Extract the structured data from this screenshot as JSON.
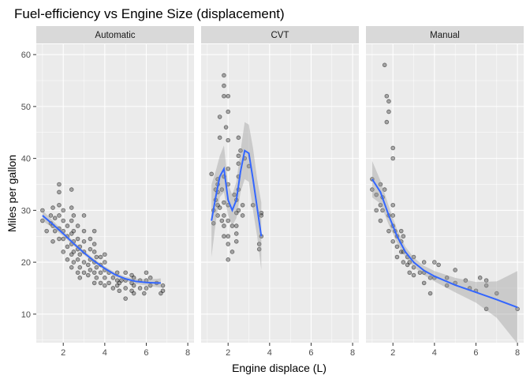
{
  "chart_data": {
    "type": "scatter",
    "title": "Fuel-efficiency vs Engine Size (displacement)",
    "xlabel": "Engine displace (L)",
    "ylabel": "Miles per gallon",
    "xlim": [
      0.7,
      8.3
    ],
    "ylim": [
      4.5,
      62
    ],
    "x_ticks": [
      2,
      4,
      6,
      8
    ],
    "y_ticks": [
      10,
      20,
      30,
      40,
      50,
      60
    ],
    "grid": true,
    "colors": {
      "panel_bg": "#ebebeb",
      "strip_bg": "#d9d9d9",
      "grid": "#ffffff",
      "point": "#000000",
      "smooth_line": "#3366ff",
      "ribbon": "#999999"
    },
    "facets": [
      {
        "label": "Automatic",
        "points": [
          [
            1.0,
            28.0
          ],
          [
            1.0,
            30.0
          ],
          [
            1.2,
            26.0
          ],
          [
            1.4,
            27.5
          ],
          [
            1.4,
            29.0
          ],
          [
            1.5,
            24.0
          ],
          [
            1.5,
            27.0
          ],
          [
            1.5,
            30.5
          ],
          [
            1.6,
            26.0
          ],
          [
            1.6,
            28.5
          ],
          [
            1.8,
            24.5
          ],
          [
            1.8,
            26.5
          ],
          [
            1.8,
            29.0
          ],
          [
            1.8,
            31.0
          ],
          [
            1.8,
            35.0
          ],
          [
            1.8,
            33.5
          ],
          [
            2.0,
            22.0
          ],
          [
            2.0,
            24.5
          ],
          [
            2.0,
            26.0
          ],
          [
            2.0,
            28.0
          ],
          [
            2.0,
            30.0
          ],
          [
            2.2,
            20.5
          ],
          [
            2.2,
            23.0
          ],
          [
            2.2,
            25.0
          ],
          [
            2.2,
            27.0
          ],
          [
            2.4,
            19.0
          ],
          [
            2.4,
            21.5
          ],
          [
            2.4,
            23.5
          ],
          [
            2.4,
            25.5
          ],
          [
            2.4,
            28.0
          ],
          [
            2.4,
            30.5
          ],
          [
            2.4,
            34.0
          ],
          [
            2.5,
            20.0
          ],
          [
            2.5,
            22.0
          ],
          [
            2.5,
            24.0
          ],
          [
            2.5,
            26.0
          ],
          [
            2.5,
            29.0
          ],
          [
            2.7,
            18.0
          ],
          [
            2.7,
            20.5
          ],
          [
            2.7,
            22.5
          ],
          [
            2.7,
            24.5
          ],
          [
            2.7,
            27.0
          ],
          [
            2.8,
            17.0
          ],
          [
            2.8,
            19.0
          ],
          [
            2.8,
            21.5
          ],
          [
            2.8,
            23.0
          ],
          [
            3.0,
            18.0
          ],
          [
            3.0,
            20.0
          ],
          [
            3.0,
            22.0
          ],
          [
            3.0,
            24.0
          ],
          [
            3.0,
            26.0
          ],
          [
            3.0,
            29.0
          ],
          [
            3.2,
            17.5
          ],
          [
            3.2,
            19.5
          ],
          [
            3.3,
            18.5
          ],
          [
            3.3,
            20.5
          ],
          [
            3.3,
            22.5
          ],
          [
            3.3,
            24.5
          ],
          [
            3.5,
            16.0
          ],
          [
            3.5,
            18.0
          ],
          [
            3.5,
            20.0
          ],
          [
            3.5,
            22.0
          ],
          [
            3.5,
            23.5
          ],
          [
            3.5,
            26.0
          ],
          [
            3.6,
            17.0
          ],
          [
            3.6,
            19.0
          ],
          [
            3.6,
            21.0
          ],
          [
            3.8,
            16.0
          ],
          [
            3.8,
            18.0
          ],
          [
            3.8,
            19.5
          ],
          [
            3.8,
            21.0
          ],
          [
            4.0,
            15.5
          ],
          [
            4.0,
            17.0
          ],
          [
            4.0,
            18.5
          ],
          [
            4.0,
            20.0
          ],
          [
            4.0,
            21.5
          ],
          [
            4.2,
            16.0
          ],
          [
            4.2,
            18.0
          ],
          [
            4.4,
            15.0
          ],
          [
            4.4,
            17.0
          ],
          [
            4.6,
            15.5
          ],
          [
            4.6,
            16.5
          ],
          [
            4.6,
            18.0
          ],
          [
            4.7,
            14.5
          ],
          [
            4.7,
            16.0
          ],
          [
            4.8,
            16.5
          ],
          [
            5.0,
            13.0
          ],
          [
            5.0,
            15.0
          ],
          [
            5.0,
            16.5
          ],
          [
            5.0,
            18.0
          ],
          [
            5.3,
            14.5
          ],
          [
            5.3,
            16.0
          ],
          [
            5.3,
            17.5
          ],
          [
            5.4,
            14.0
          ],
          [
            5.4,
            15.5
          ],
          [
            5.4,
            17.0
          ],
          [
            5.7,
            15.0
          ],
          [
            5.7,
            16.5
          ],
          [
            5.9,
            14.0
          ],
          [
            6.0,
            15.0
          ],
          [
            6.0,
            16.5
          ],
          [
            6.0,
            18.0
          ],
          [
            6.2,
            15.5
          ],
          [
            6.2,
            17.0
          ],
          [
            6.5,
            16.0
          ],
          [
            6.7,
            14.0
          ],
          [
            6.8,
            14.5
          ],
          [
            6.8,
            15.5
          ]
        ],
        "smooth": [
          [
            1.0,
            29.0
          ],
          [
            1.5,
            27.3
          ],
          [
            2.0,
            25.5
          ],
          [
            2.5,
            23.6
          ],
          [
            3.0,
            21.8
          ],
          [
            3.5,
            20.2
          ],
          [
            4.0,
            18.8
          ],
          [
            4.5,
            17.6
          ],
          [
            5.0,
            16.8
          ],
          [
            5.5,
            16.3
          ],
          [
            6.0,
            16.1
          ],
          [
            6.5,
            16.0
          ],
          [
            6.7,
            16.0
          ]
        ],
        "ribbon_half": [
          1.0,
          0.7,
          0.5,
          0.4,
          0.4,
          0.4,
          0.4,
          0.4,
          0.4,
          0.5,
          0.6,
          0.8,
          0.9
        ]
      },
      {
        "label": "CVT",
        "points": [
          [
            1.2,
            37.0
          ],
          [
            1.3,
            27.5
          ],
          [
            1.3,
            30.0
          ],
          [
            1.4,
            32.0
          ],
          [
            1.4,
            34.0
          ],
          [
            1.5,
            29.0
          ],
          [
            1.5,
            31.0
          ],
          [
            1.5,
            33.5
          ],
          [
            1.5,
            35.0
          ],
          [
            1.5,
            36.0
          ],
          [
            1.6,
            48.0
          ],
          [
            1.6,
            44.0
          ],
          [
            1.6,
            30.5
          ],
          [
            1.7,
            28.0
          ],
          [
            1.7,
            34.0
          ],
          [
            1.8,
            25.0
          ],
          [
            1.8,
            27.0
          ],
          [
            1.8,
            29.0
          ],
          [
            1.8,
            31.5
          ],
          [
            1.8,
            36.5
          ],
          [
            1.8,
            54.0
          ],
          [
            1.8,
            56.0
          ],
          [
            1.8,
            52.0
          ],
          [
            1.9,
            46.0
          ],
          [
            2.0,
            20.5
          ],
          [
            2.0,
            23.5
          ],
          [
            2.0,
            25.0
          ],
          [
            2.0,
            28.0
          ],
          [
            2.0,
            31.0
          ],
          [
            2.0,
            35.0
          ],
          [
            2.0,
            38.0
          ],
          [
            2.0,
            52.0
          ],
          [
            2.0,
            49.0
          ],
          [
            2.0,
            43.5
          ],
          [
            2.2,
            27.0
          ],
          [
            2.2,
            22.0
          ],
          [
            2.3,
            33.0
          ],
          [
            2.4,
            24.0
          ],
          [
            2.4,
            25.5
          ],
          [
            2.4,
            27.0
          ],
          [
            2.4,
            29.5
          ],
          [
            2.4,
            32.0
          ],
          [
            2.5,
            30.0
          ],
          [
            2.5,
            34.0
          ],
          [
            2.5,
            36.5
          ],
          [
            2.5,
            39.0
          ],
          [
            2.5,
            40.5
          ],
          [
            2.5,
            44.0
          ],
          [
            2.6,
            41.5
          ],
          [
            2.7,
            29.0
          ],
          [
            2.7,
            31.0
          ],
          [
            2.8,
            40.0
          ],
          [
            3.0,
            38.5
          ],
          [
            3.2,
            31.0
          ],
          [
            3.5,
            22.5
          ],
          [
            3.5,
            23.5
          ],
          [
            3.6,
            25.0
          ],
          [
            3.6,
            29.0
          ],
          [
            3.6,
            29.5
          ]
        ],
        "smooth": [
          [
            1.2,
            28.0
          ],
          [
            1.4,
            32.5
          ],
          [
            1.6,
            36.5
          ],
          [
            1.8,
            38.0
          ],
          [
            2.0,
            32.0
          ],
          [
            2.2,
            30.0
          ],
          [
            2.4,
            32.0
          ],
          [
            2.6,
            37.5
          ],
          [
            2.8,
            41.5
          ],
          [
            3.0,
            41.0
          ],
          [
            3.2,
            36.0
          ],
          [
            3.4,
            30.5
          ],
          [
            3.6,
            25.0
          ]
        ],
        "ribbon_half": [
          7.0,
          5.0,
          4.0,
          4.5,
          3.0,
          3.0,
          3.5,
          4.0,
          5.5,
          5.5,
          6.0,
          5.5,
          6.5
        ]
      },
      {
        "label": "Manual",
        "points": [
          [
            1.0,
            34.0
          ],
          [
            1.0,
            36.0
          ],
          [
            1.2,
            33.0
          ],
          [
            1.2,
            30.0
          ],
          [
            1.4,
            31.0
          ],
          [
            1.4,
            35.0
          ],
          [
            1.4,
            28.0
          ],
          [
            1.5,
            30.0
          ],
          [
            1.5,
            32.5
          ],
          [
            1.6,
            34.0
          ],
          [
            1.6,
            58.0
          ],
          [
            1.7,
            52.0
          ],
          [
            1.7,
            47.0
          ],
          [
            1.8,
            29.0
          ],
          [
            1.8,
            26.0
          ],
          [
            1.8,
            49.0
          ],
          [
            1.8,
            51.0
          ],
          [
            2.0,
            24.0
          ],
          [
            2.0,
            27.0
          ],
          [
            2.0,
            29.0
          ],
          [
            2.0,
            31.0
          ],
          [
            2.0,
            42.0
          ],
          [
            2.0,
            40.0
          ],
          [
            2.1,
            26.0
          ],
          [
            2.2,
            23.0
          ],
          [
            2.2,
            25.0
          ],
          [
            2.2,
            21.0
          ],
          [
            2.4,
            22.0
          ],
          [
            2.4,
            24.0
          ],
          [
            2.4,
            26.0
          ],
          [
            2.5,
            20.0
          ],
          [
            2.5,
            22.0
          ],
          [
            2.5,
            25.0
          ],
          [
            2.7,
            19.5
          ],
          [
            2.7,
            21.0
          ],
          [
            2.8,
            18.0
          ],
          [
            2.8,
            20.0
          ],
          [
            3.0,
            17.5
          ],
          [
            3.0,
            19.0
          ],
          [
            3.0,
            21.0
          ],
          [
            3.3,
            18.0
          ],
          [
            3.5,
            16.0
          ],
          [
            3.5,
            18.0
          ],
          [
            3.5,
            20.0
          ],
          [
            3.8,
            14.0
          ],
          [
            3.8,
            17.0
          ],
          [
            4.0,
            17.0
          ],
          [
            4.0,
            20.0
          ],
          [
            4.2,
            19.5
          ],
          [
            4.6,
            15.5
          ],
          [
            4.6,
            17.0
          ],
          [
            5.0,
            16.0
          ],
          [
            5.0,
            18.5
          ],
          [
            5.5,
            16.5
          ],
          [
            5.7,
            15.0
          ],
          [
            6.0,
            14.5
          ],
          [
            6.2,
            17.0
          ],
          [
            6.5,
            11.0
          ],
          [
            6.5,
            15.5
          ],
          [
            6.5,
            16.5
          ],
          [
            7.0,
            14.0
          ],
          [
            8.0,
            11.0
          ]
        ],
        "smooth": [
          [
            1.0,
            36.0
          ],
          [
            1.4,
            33.5
          ],
          [
            1.8,
            29.0
          ],
          [
            2.2,
            25.0
          ],
          [
            2.6,
            22.0
          ],
          [
            3.0,
            20.0
          ],
          [
            3.5,
            18.4
          ],
          [
            4.0,
            17.3
          ],
          [
            5.0,
            15.6
          ],
          [
            6.0,
            14.2
          ],
          [
            7.0,
            12.8
          ],
          [
            8.0,
            11.3
          ]
        ],
        "ribbon_half": [
          3.5,
          2.2,
          1.8,
          1.3,
          1.0,
          0.9,
          0.9,
          1.0,
          1.4,
          2.0,
          3.5,
          7.0
        ]
      }
    ]
  }
}
